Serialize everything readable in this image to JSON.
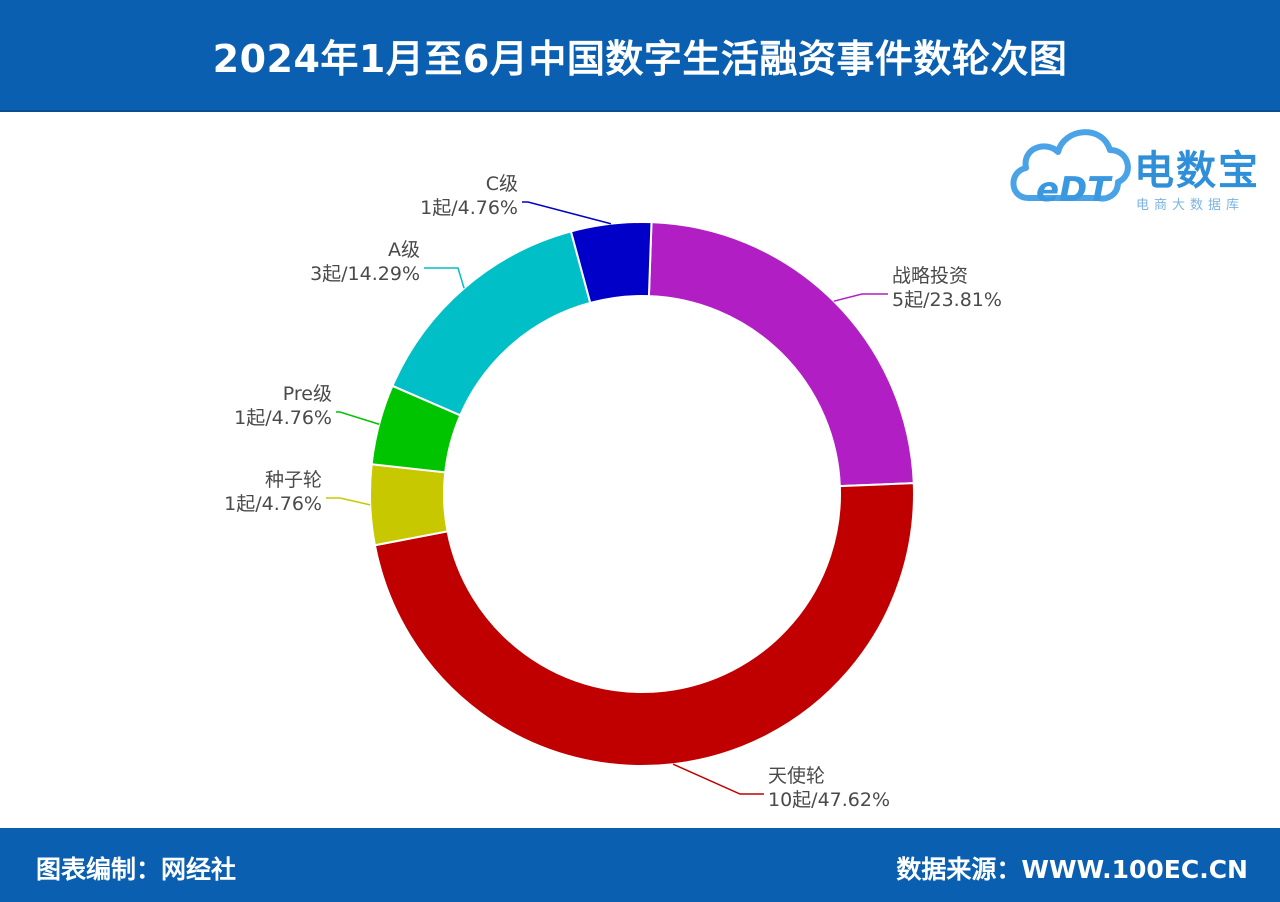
{
  "header": {
    "title": "2024年1月至6月中国数字生活融资事件数轮次图"
  },
  "footer": {
    "left_text": "图表编制：网经社",
    "right_text": "数据来源：WWW.100EC.CN"
  },
  "logo": {
    "brand": "电数宝",
    "sub": "电商大数据库",
    "mark": "eDT"
  },
  "chart_data": {
    "type": "pie",
    "donut": true,
    "title": "2024年1月至6月中国数字生活融资事件数轮次图",
    "slices": [
      {
        "name": "战略投资",
        "value": 5,
        "label": "5起/23.81%",
        "color": "#b11fc4"
      },
      {
        "name": "天使轮",
        "value": 10,
        "label": "10起/47.62%",
        "color": "#c00000"
      },
      {
        "name": "种子轮",
        "value": 1,
        "label": "1起/4.76%",
        "color": "#c8c800"
      },
      {
        "name": "Pre级",
        "value": 1,
        "label": "1起/4.76%",
        "color": "#00c400"
      },
      {
        "name": "A级",
        "value": 3,
        "label": "3起/14.29%",
        "color": "#00bfc6"
      },
      {
        "name": "C级",
        "value": 1,
        "label": "1起/4.76%",
        "color": "#0000c8"
      }
    ]
  }
}
